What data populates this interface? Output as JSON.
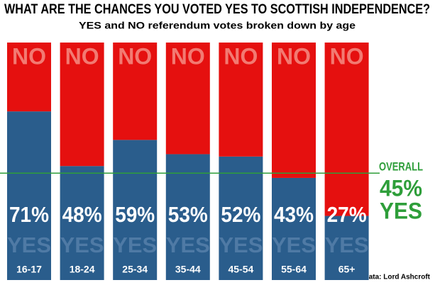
{
  "chart_data": {
    "type": "stacked_bar",
    "title": "WHAT ARE THE CHANCES YOU VOTED YES TO SCOTTISH INDEPENDENCE?",
    "subtitle": "YES and NO referendum votes broken down by age",
    "categories": [
      "16-17",
      "18-24",
      "25-34",
      "35-44",
      "45-54",
      "55-64",
      "65+"
    ],
    "series": [
      {
        "name": "YES",
        "color": "#2a5d8c",
        "values": [
          71,
          48,
          59,
          53,
          52,
          43,
          27
        ],
        "value_labels": [
          "71%",
          "48%",
          "59%",
          "53%",
          "52%",
          "43%",
          "27%"
        ]
      },
      {
        "name": "NO",
        "color": "#e5100f",
        "values": [
          29,
          52,
          41,
          47,
          48,
          57,
          73
        ]
      }
    ],
    "ylim": [
      0,
      100
    ],
    "overall": {
      "label": "OVERALL",
      "value": 45,
      "value_label": "45%",
      "color": "#2e9e3a"
    },
    "source": "Data: Lord Ashcroft"
  }
}
